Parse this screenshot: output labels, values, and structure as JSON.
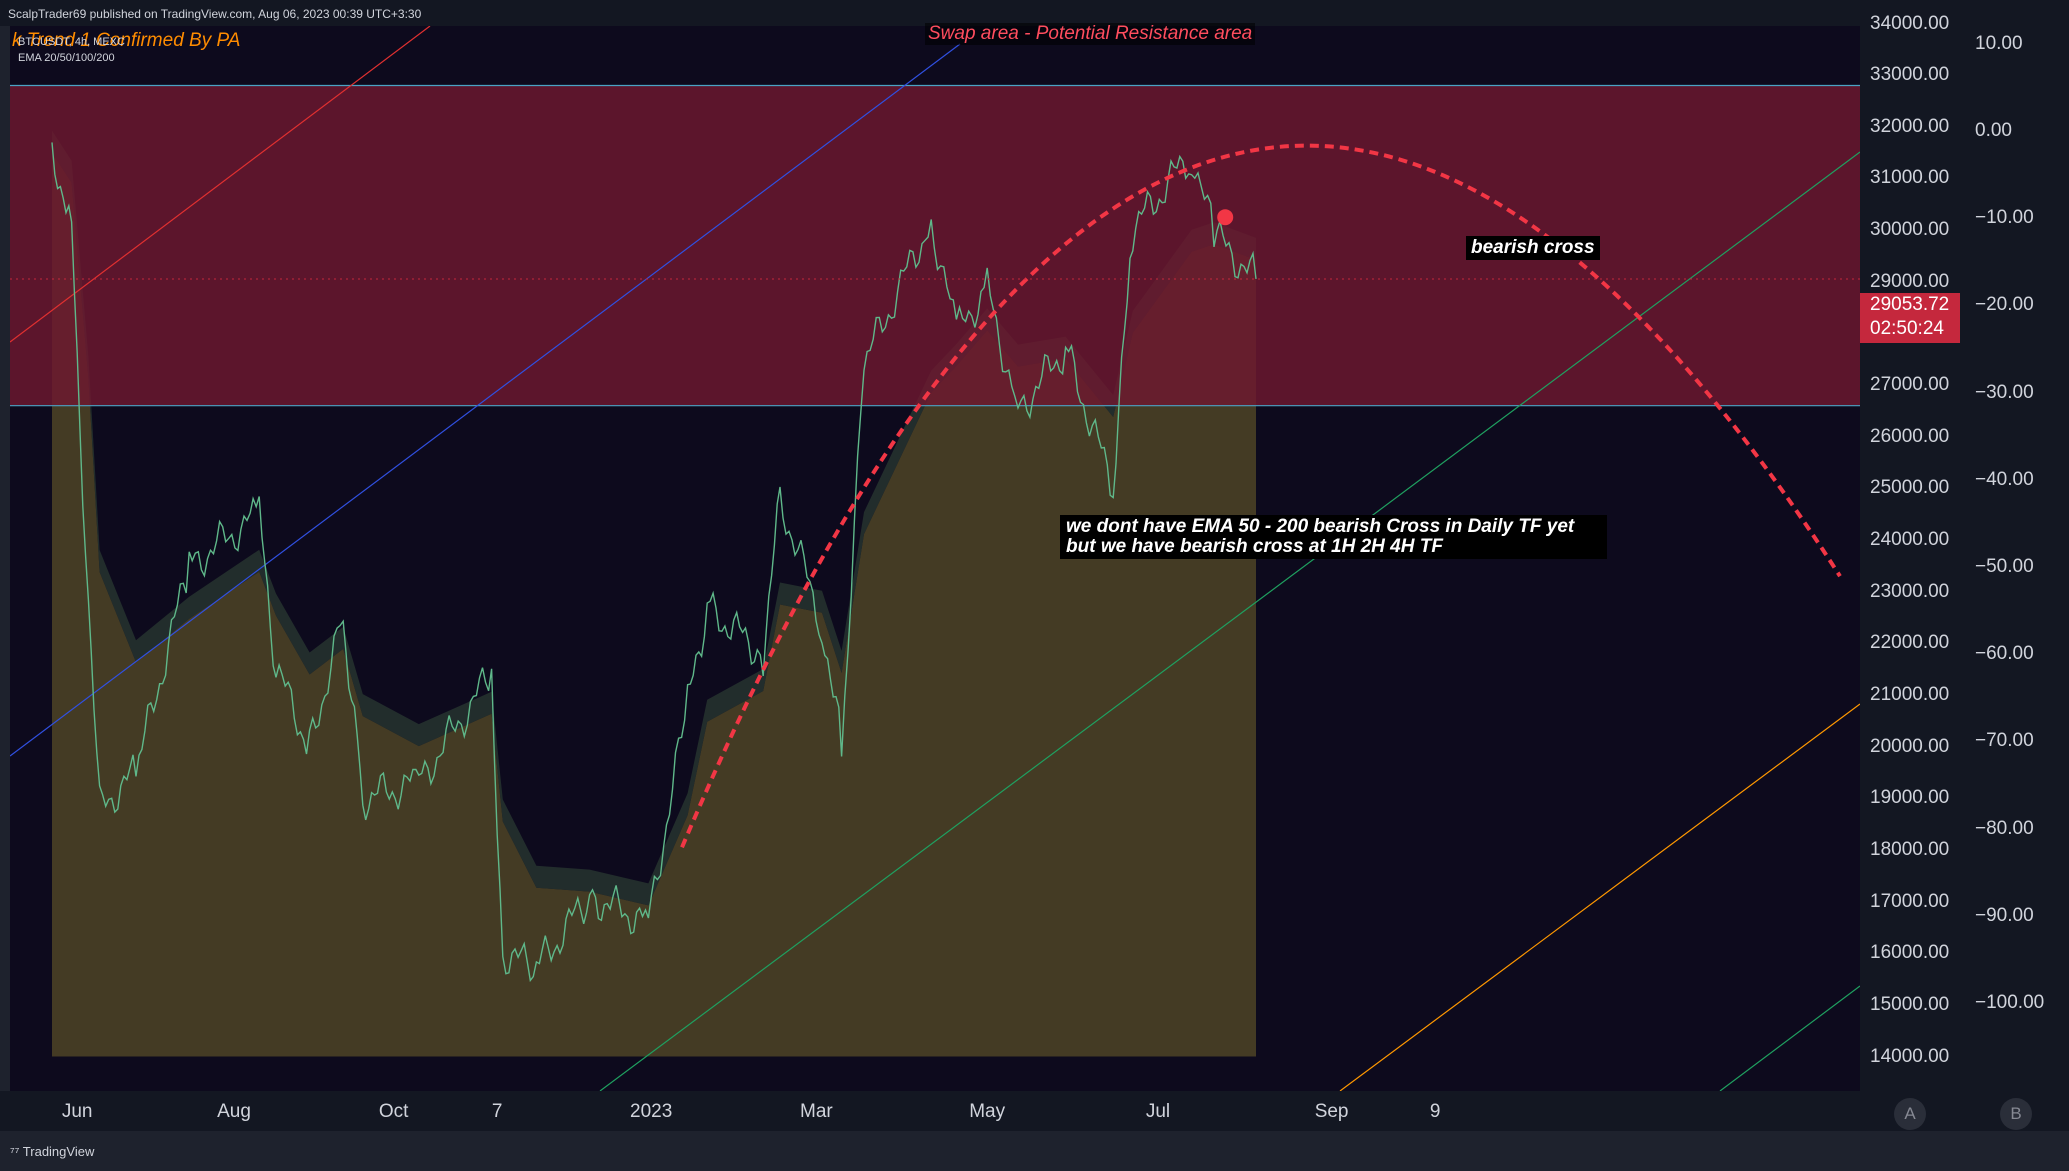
{
  "header": {
    "published_text": "ScalpTrader69 published on TradingView.com, Aug 06, 2023 00:39 UTC+3:30",
    "strategy_title": "k    Trend 1 Confirmed By PA",
    "symbol_text": "BTCUSDT, 4h, MEXC",
    "indicator_text": "EMA 20/50/100/200"
  },
  "annotations": {
    "swap_area": "Swap area - Potential Resistance area",
    "bearish_cross": "bearish cross",
    "ema_note_line1": "we dont have EMA 50 - 200 bearish Cross in Daily TF yet",
    "ema_note_line2": "but we have bearish cross at 1H 2H 4H TF"
  },
  "price_tag": {
    "price": "29053.72",
    "countdown": "02:50:24"
  },
  "footer": {
    "brand": "TradingView"
  },
  "axis_buttons": {
    "a": "A",
    "b": "B"
  },
  "colors": {
    "resistance_zone": "#6e1830",
    "ema_fill": "#4a4026",
    "curve": "#f23645",
    "price_tag": "#c5283d",
    "title": "#ff8c00"
  },
  "chart_data": {
    "type": "line",
    "title": "",
    "price_axis_labels": [
      "34000.00",
      "33000.00",
      "32000.00",
      "31000.00",
      "30000.00",
      "29000.00",
      "28000.00",
      "27000.00",
      "26000.00",
      "25000.00",
      "24000.00",
      "23000.00",
      "22000.00",
      "21000.00",
      "20000.00",
      "19000.00",
      "18000.00",
      "17000.00",
      "16000.00",
      "15000.00",
      "14000.00"
    ],
    "pct_axis_labels": [
      "10.00",
      "0.00",
      "−10.00",
      "−20.00",
      "−30.00",
      "−40.00",
      "−50.00",
      "−60.00",
      "−70.00",
      "−80.00",
      "−90.00",
      "−100.00"
    ],
    "x_labels": [
      "Jun",
      "Aug",
      "Oct",
      "7",
      "2023",
      "Mar",
      "May",
      "Jul",
      "Sep",
      "9"
    ],
    "ylim": [
      14000,
      34500
    ],
    "zones": [
      {
        "name": "Swap area",
        "from": 26600,
        "to": 32800
      }
    ],
    "series": [
      {
        "values": [
          {
            "t": "2022-06-01",
            "v": 31500
          },
          {
            "t": "2022-06-08",
            "v": 30200
          },
          {
            "t": "2022-06-14",
            "v": 22500
          },
          {
            "t": "2022-06-18",
            "v": 18800
          },
          {
            "t": "2022-07-01",
            "v": 19500
          },
          {
            "t": "2022-07-20",
            "v": 23500
          },
          {
            "t": "2022-08-14",
            "v": 24500
          },
          {
            "t": "2022-08-20",
            "v": 21500
          },
          {
            "t": "2022-09-01",
            "v": 20000
          },
          {
            "t": "2022-09-13",
            "v": 22500
          },
          {
            "t": "2022-09-20",
            "v": 19000
          },
          {
            "t": "2022-10-10",
            "v": 19300
          },
          {
            "t": "2022-11-05",
            "v": 21400
          },
          {
            "t": "2022-11-09",
            "v": 16000
          },
          {
            "t": "2022-11-21",
            "v": 15700
          },
          {
            "t": "2022-12-10",
            "v": 17100
          },
          {
            "t": "2022-12-31",
            "v": 16600
          },
          {
            "t": "2023-01-14",
            "v": 20800
          },
          {
            "t": "2023-01-21",
            "v": 22700
          },
          {
            "t": "2023-02-10",
            "v": 21800
          },
          {
            "t": "2023-02-16",
            "v": 24800
          },
          {
            "t": "2023-03-03",
            "v": 22400
          },
          {
            "t": "2023-03-10",
            "v": 20000
          },
          {
            "t": "2023-03-18",
            "v": 27400
          },
          {
            "t": "2023-04-11",
            "v": 30200
          },
          {
            "t": "2023-04-20",
            "v": 28000
          },
          {
            "t": "2023-05-01",
            "v": 28900
          },
          {
            "t": "2023-05-12",
            "v": 26500
          },
          {
            "t": "2023-05-29",
            "v": 27700
          },
          {
            "t": "2023-06-15",
            "v": 25000
          },
          {
            "t": "2023-06-22",
            "v": 30000
          },
          {
            "t": "2023-07-13",
            "v": 31500
          },
          {
            "t": "2023-07-21",
            "v": 29900
          },
          {
            "t": "2023-08-05",
            "v": 29053.72
          }
        ]
      }
    ]
  }
}
